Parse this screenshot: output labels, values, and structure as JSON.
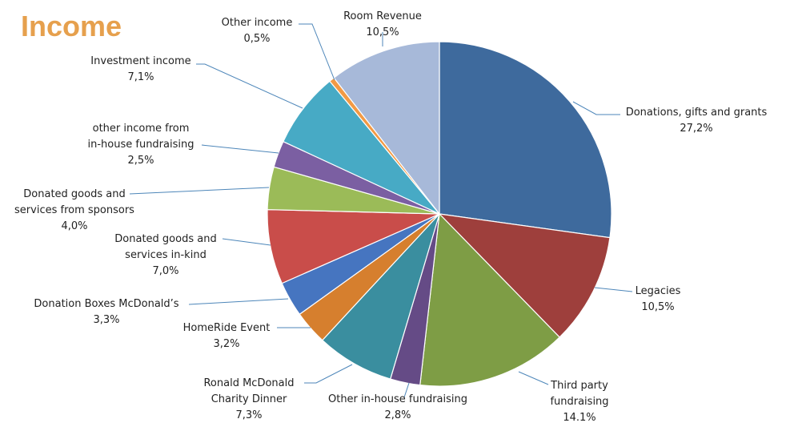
{
  "chart_data": {
    "type": "pie",
    "title": "Income",
    "colors": {
      "title": "#e6a04d"
    },
    "slices": [
      {
        "label": "Donations, gifts and grants",
        "value": 27.2,
        "display": "27,2%",
        "color": "#3e6a9d"
      },
      {
        "label": "Legacies",
        "value": 10.5,
        "display": "10,5%",
        "color": "#9e3f3c"
      },
      {
        "label": "Third party fundraising",
        "value": 14.1,
        "display": "14.1%",
        "color": "#7e9d45"
      },
      {
        "label": "Other in-house fundraising",
        "value": 2.8,
        "display": "2,8%",
        "color": "#654b86"
      },
      {
        "label": "Ronald McDonald Charity Dinner",
        "value": 7.3,
        "display": "7,3%",
        "color": "#3a8e9f"
      },
      {
        "label": "HomeRide Event",
        "value": 3.2,
        "display": "3,2%",
        "color": "#d67f2e"
      },
      {
        "label": "Donation Boxes McDonald’s",
        "value": 3.3,
        "display": "3,3%",
        "color": "#4675c0"
      },
      {
        "label": "Donated goods and services in-kind",
        "value": 7.0,
        "display": "7,0%",
        "color": "#c94d4a"
      },
      {
        "label": "Donated goods and services from sponsors",
        "value": 4.0,
        "display": "4,0%",
        "color": "#9bbb58"
      },
      {
        "label": "other income from in-house fundraising",
        "value": 2.5,
        "display": "2,5%",
        "color": "#7b5fa2"
      },
      {
        "label": "Investment income",
        "value": 7.1,
        "display": "7,1%",
        "color": "#47aac5"
      },
      {
        "label": "Other income",
        "value": 0.5,
        "display": "0,5%",
        "color": "#f29a45"
      },
      {
        "label": "Room Revenue",
        "value": 10.5,
        "display": "10,5%",
        "color": "#a7b9d9"
      }
    ]
  }
}
